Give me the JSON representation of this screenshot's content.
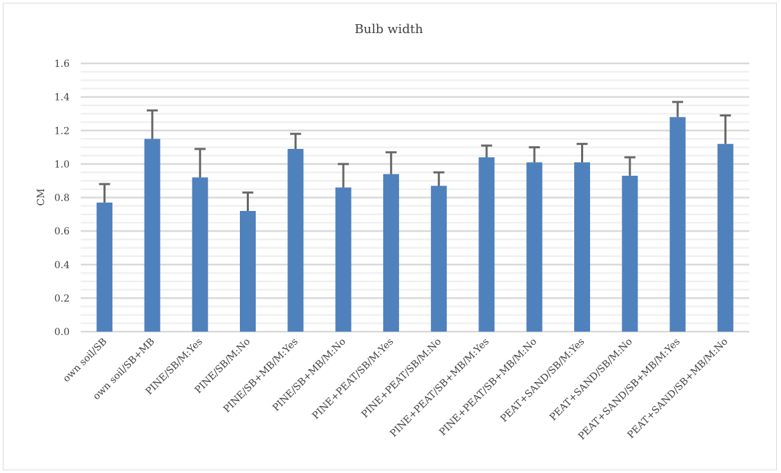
{
  "chart_data": {
    "type": "bar",
    "title": "Bulb width",
    "xlabel": "",
    "ylabel": "CM",
    "ylim": [
      0,
      1.6
    ],
    "ytick_step": 0.2,
    "minor_grid_step": 0.05,
    "grid": true,
    "legend": "none",
    "bar_color": "#4f81bd",
    "error_color": "#666666",
    "categories": [
      "own soil/SB",
      "own soil/SB+MB",
      "PINE/SB/M:Yes",
      "PINE/SB/M:No",
      "PINE/SB+MB/M:Yes",
      "PINE/SB+MB/M:No",
      "PINE+PEAT/SB/M:Yes",
      "PINE+PEAT/SB/M:No",
      "PINE+PEAT/SB+MB/M:Yes",
      "PINE+PEAT/SB+MB/M:No",
      "PEAT+SAND/SB/M:Yes",
      "PEAT+SAND/SB/M:No",
      "PEAT+SAND/SB+MB/M:Yes",
      "PEAT+SAND/SB+MB/M:No"
    ],
    "values": [
      0.77,
      1.15,
      0.92,
      0.72,
      1.09,
      0.86,
      0.94,
      0.87,
      1.04,
      1.01,
      1.01,
      0.93,
      1.28,
      1.12
    ],
    "error_upper": [
      0.88,
      1.32,
      1.09,
      0.83,
      1.18,
      1.0,
      1.07,
      0.95,
      1.11,
      1.1,
      1.12,
      1.04,
      1.37,
      1.29
    ]
  }
}
